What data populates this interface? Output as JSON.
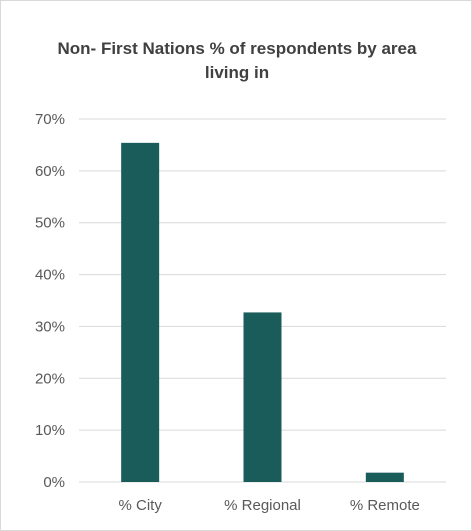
{
  "chart_data": {
    "type": "bar",
    "title": "Non- First Nations % of respondents by area living in",
    "categories": [
      "% City",
      "% Regional",
      "% Remote"
    ],
    "values": [
      0.654,
      0.327,
      0.018
    ],
    "ylim": [
      0,
      0.7
    ],
    "yticks": [
      0,
      0.1,
      0.2,
      0.3,
      0.4,
      0.5,
      0.6,
      0.7
    ],
    "ytick_labels": [
      "0%",
      "10%",
      "20%",
      "30%",
      "40%",
      "50%",
      "60%",
      "70%"
    ],
    "xlabel": "",
    "ylabel": "",
    "grid": true,
    "bar_color": "#1a5c5a",
    "grid_color": "#d9d9d9"
  }
}
